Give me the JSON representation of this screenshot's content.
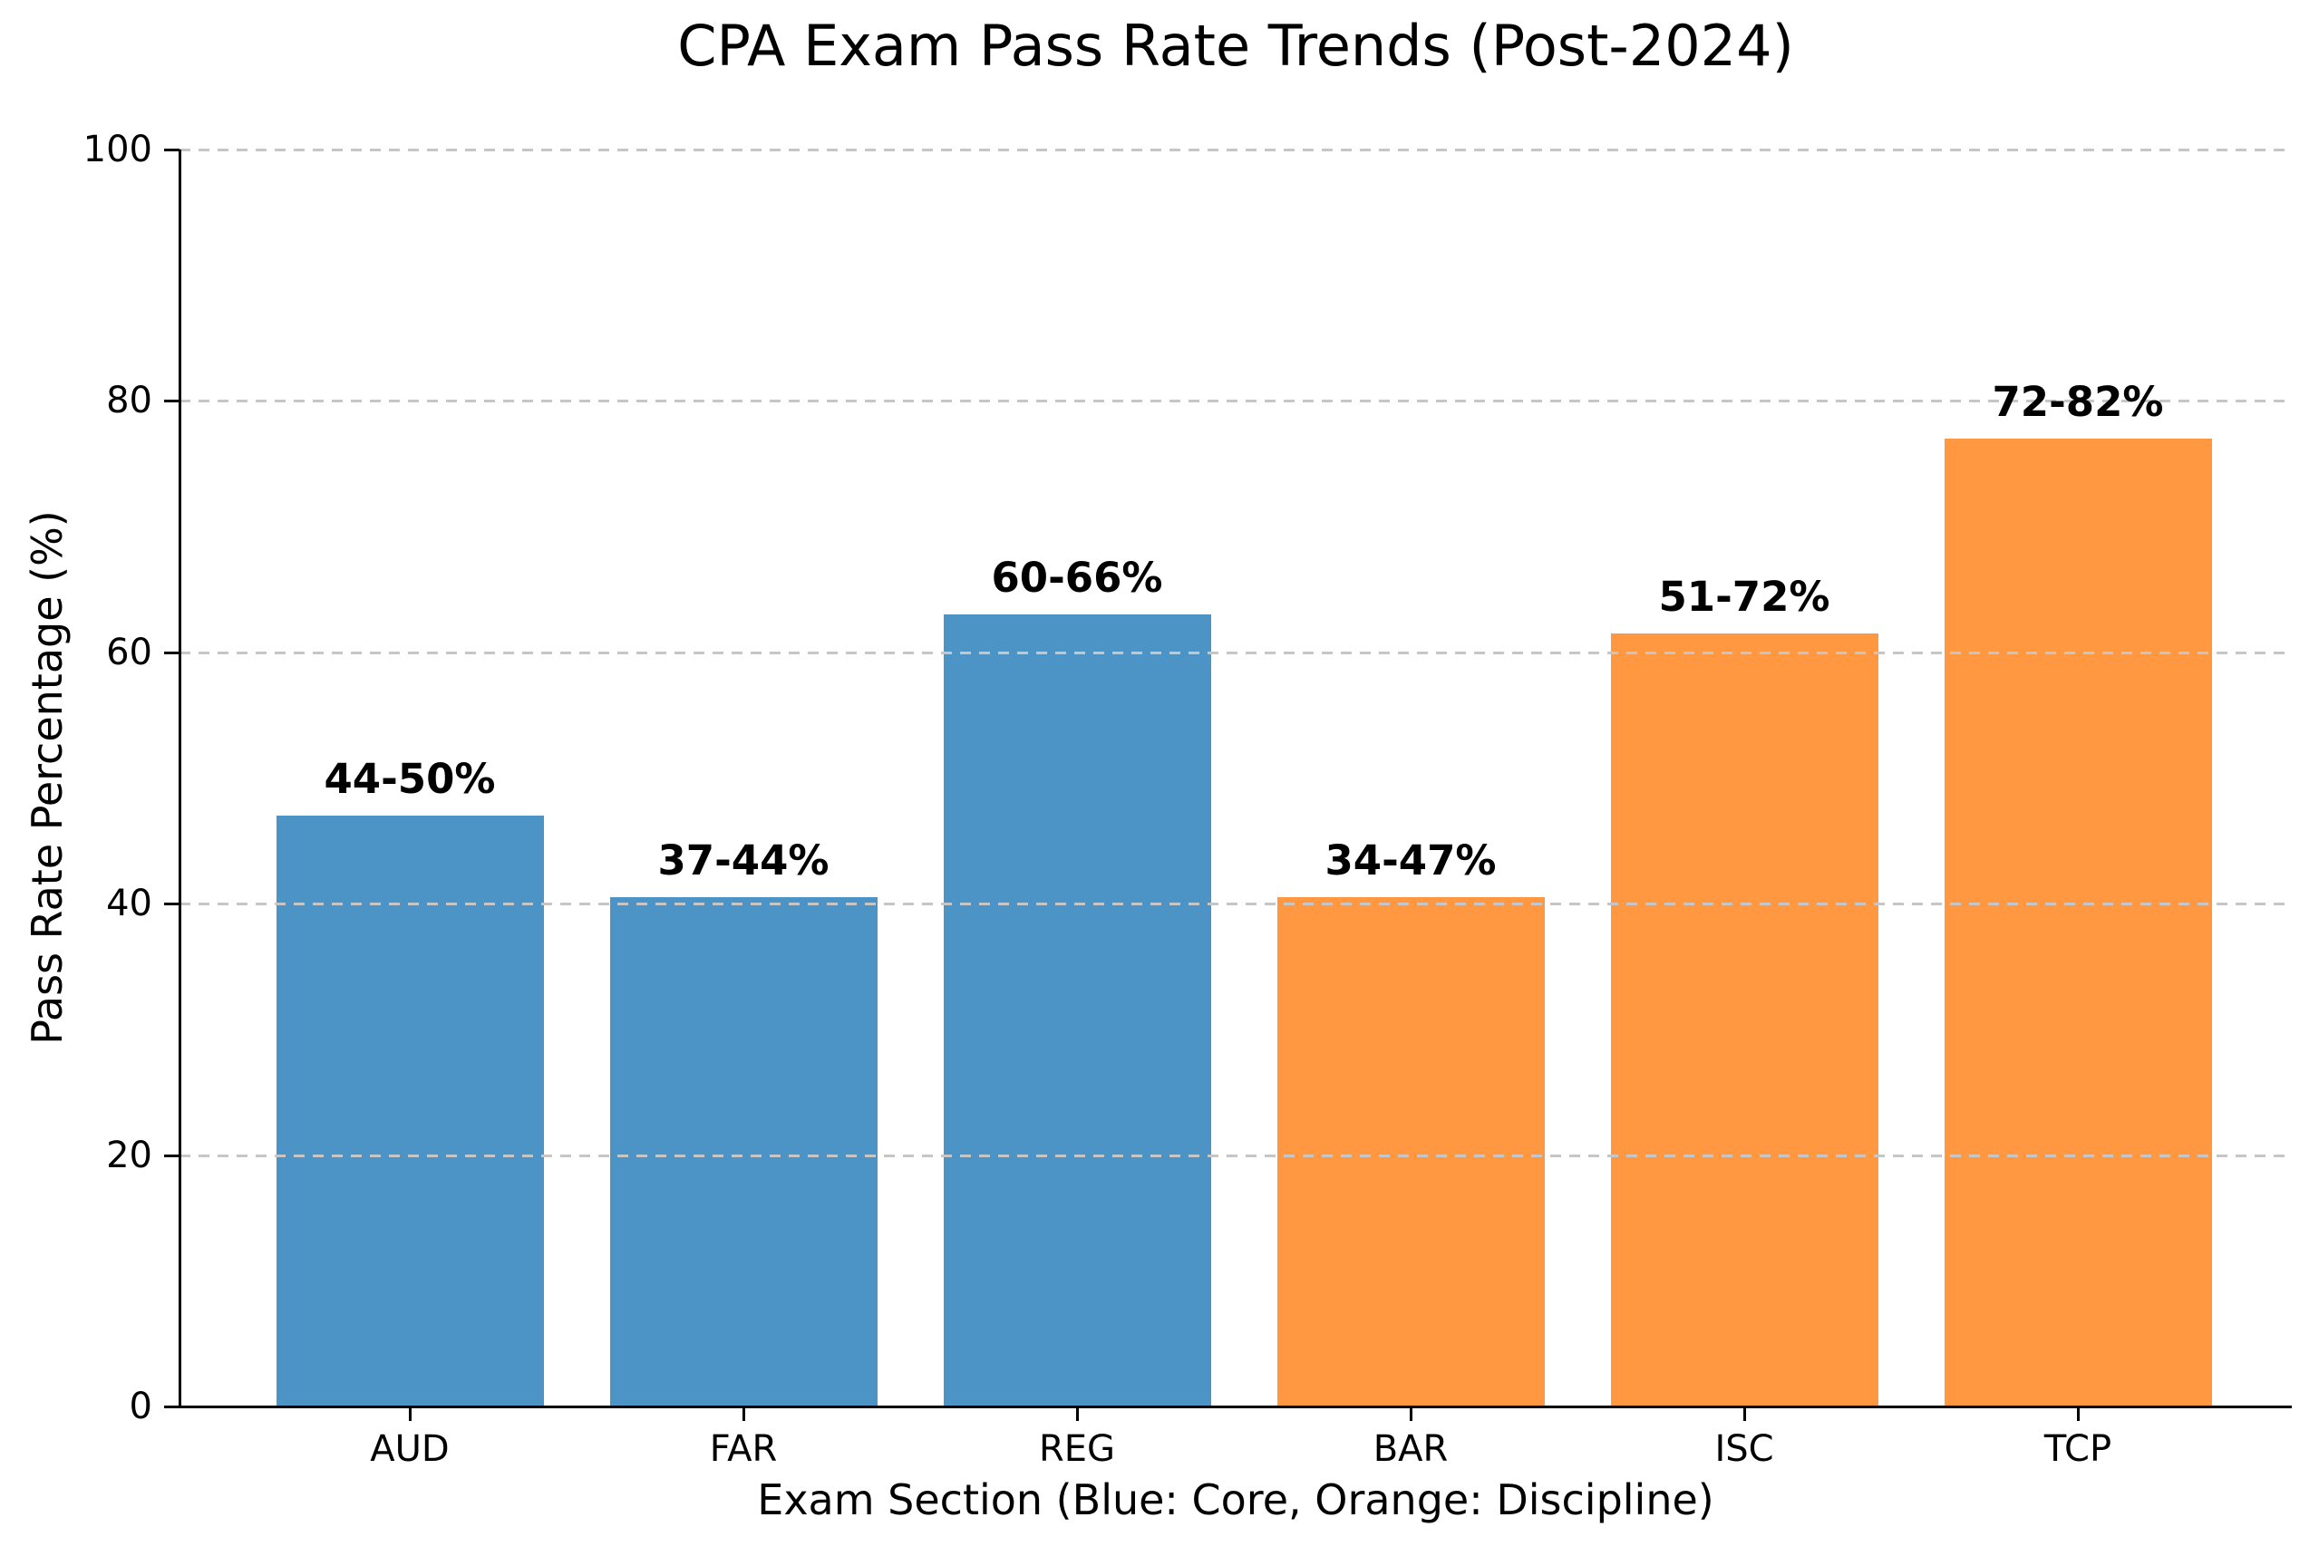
{
  "chart_data": {
    "type": "bar",
    "title": "CPA Exam Pass Rate Trends (Post-2024)",
    "xlabel": "Exam Section (Blue: Core, Orange: Discipline)",
    "ylabel": "Pass Rate Percentage (%)",
    "categories": [
      "AUD",
      "FAR",
      "REG",
      "BAR",
      "ISC",
      "TCP"
    ],
    "values": [
      47,
      40.5,
      63,
      40.5,
      61.5,
      77
    ],
    "bar_labels": [
      "44-50%",
      "37-44%",
      "60-66%",
      "34-47%",
      "51-72%",
      "72-82%"
    ],
    "groups": [
      "Core",
      "Core",
      "Core",
      "Discipline",
      "Discipline",
      "Discipline"
    ],
    "bar_colors": [
      "#4D94C6",
      "#4D94C6",
      "#4D94C6",
      "#FF9840",
      "#FF9840",
      "#FF9840"
    ],
    "color_legend": {
      "core_blue": "#4D94C6",
      "discipline_orange": "#FF9840"
    },
    "ylim": [
      0,
      100
    ],
    "yticks": [
      0,
      20,
      40,
      60,
      80,
      100
    ],
    "grid": {
      "axis": "y",
      "style": "dashed",
      "color": "#C6C6C6",
      "gridline_values": [
        20,
        40,
        60,
        80,
        100
      ]
    },
    "legend": "none"
  }
}
